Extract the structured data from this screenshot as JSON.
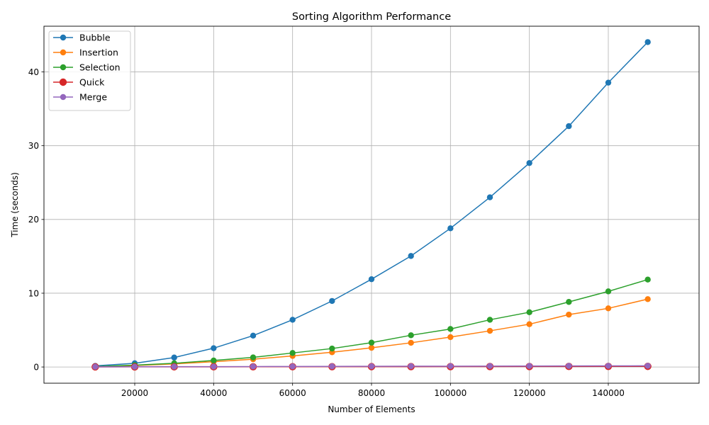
{
  "chart_data": {
    "type": "line",
    "title": "Sorting Algorithm Performance",
    "xlabel": "Number of Elements",
    "ylabel": "Time (seconds)",
    "x": [
      10000,
      20000,
      30000,
      40000,
      50000,
      60000,
      70000,
      80000,
      90000,
      100000,
      110000,
      120000,
      130000,
      140000,
      150000
    ],
    "xlim": [
      -3000,
      163000
    ],
    "ylim": [
      -2.2,
      46.2
    ],
    "xticks": [
      20000,
      40000,
      60000,
      80000,
      100000,
      120000,
      140000
    ],
    "yticks": [
      0,
      10,
      20,
      30,
      40
    ],
    "xtick_labels": [
      "20000",
      "40000",
      "60000",
      "80000",
      "100000",
      "120000",
      "140000"
    ],
    "ytick_labels": [
      "0",
      "10",
      "20",
      "30",
      "40"
    ],
    "grid": true,
    "legend_position": "upper-left",
    "series": [
      {
        "name": "Bubble",
        "color": "#1f77b4",
        "marker": "large-dot-no",
        "values": [
          0.15,
          0.5,
          1.28,
          2.55,
          4.25,
          6.4,
          8.95,
          11.9,
          15.05,
          18.8,
          23.0,
          27.65,
          32.65,
          38.55,
          44.05
        ]
      },
      {
        "name": "Insertion",
        "color": "#ff7f0e",
        "values": [
          0.05,
          0.2,
          0.42,
          0.72,
          1.05,
          1.5,
          2.0,
          2.6,
          3.28,
          4.05,
          4.9,
          5.8,
          7.1,
          7.95,
          9.2
        ]
      },
      {
        "name": "Selection",
        "color": "#2ca02c",
        "values": [
          0.06,
          0.25,
          0.5,
          0.88,
          1.3,
          1.9,
          2.5,
          3.3,
          4.3,
          5.15,
          6.4,
          7.42,
          8.82,
          10.25,
          11.85
        ]
      },
      {
        "name": "Quick",
        "color": "#d62728",
        "large_marker": true,
        "values": [
          0.01,
          0.015,
          0.02,
          0.025,
          0.03,
          0.035,
          0.04,
          0.045,
          0.05,
          0.055,
          0.06,
          0.065,
          0.07,
          0.075,
          0.08
        ]
      },
      {
        "name": "Merge",
        "color": "#9467bd",
        "values": [
          0.02,
          0.03,
          0.04,
          0.05,
          0.06,
          0.07,
          0.08,
          0.09,
          0.1,
          0.11,
          0.12,
          0.13,
          0.14,
          0.15,
          0.16
        ]
      }
    ]
  }
}
